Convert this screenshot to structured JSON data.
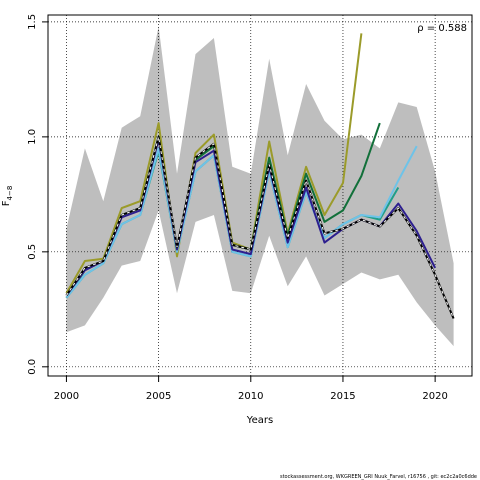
{
  "chart_data": {
    "type": "line",
    "xlabel": "Years",
    "ylabel_main": "F",
    "ylabel_sub": "4−8",
    "annotation": "ρ = 0.588",
    "footer": "stockassessment.org, WKGREEN_GRI Nuuk_Farvel, r16756 , git: ec2c2a0c6dde",
    "xlim": [
      1999,
      2022
    ],
    "ylim": [
      -0.04,
      1.53
    ],
    "x_ticks": [
      2000,
      2005,
      2010,
      2015,
      2020
    ],
    "y_ticks": [
      0.0,
      0.5,
      1.0,
      1.5
    ],
    "y_tick_labels": [
      "0.0",
      "0.5",
      "1.0",
      "1.5"
    ],
    "grid": true,
    "colors": {
      "band": "#bebebe",
      "base": "#000000",
      "navy": "#2d1f8f",
      "skyblue": "#6ec3e8",
      "teal": "#1f9e89",
      "green": "#12703a",
      "olive": "#9b9b2a"
    },
    "band": {
      "x": [
        2000,
        2001,
        2002,
        2003,
        2004,
        2005,
        2006,
        2007,
        2008,
        2009,
        2010,
        2011,
        2012,
        2013,
        2014,
        2015,
        2016,
        2017,
        2018,
        2019,
        2020,
        2021
      ],
      "upper": [
        0.6,
        0.95,
        0.72,
        1.04,
        1.09,
        1.48,
        0.84,
        1.36,
        1.43,
        0.87,
        0.84,
        1.34,
        0.92,
        1.23,
        1.07,
        0.99,
        1.01,
        0.95,
        1.15,
        1.13,
        0.85,
        0.45
      ],
      "lower": [
        0.15,
        0.18,
        0.3,
        0.44,
        0.46,
        0.68,
        0.32,
        0.63,
        0.66,
        0.33,
        0.32,
        0.57,
        0.35,
        0.48,
        0.31,
        0.36,
        0.41,
        0.38,
        0.4,
        0.28,
        0.18,
        0.09
      ]
    },
    "series": [
      {
        "x": [
          2000,
          2001,
          2002,
          2003,
          2004,
          2005,
          2006,
          2007,
          2008,
          2009,
          2010,
          2011,
          2012,
          2013,
          2014,
          2015,
          2016,
          2017,
          2018,
          2019,
          2020,
          2021
        ],
        "values": [
          0.31,
          0.43,
          0.46,
          0.66,
          0.69,
          1.0,
          0.52,
          0.91,
          0.97,
          0.53,
          0.51,
          0.88,
          0.56,
          0.81,
          0.58,
          0.6,
          0.64,
          0.61,
          0.69,
          0.57,
          0.4,
          0.21
        ],
        "color_key": "base",
        "dashed_overlay": true
      },
      {
        "x": [
          2000,
          2001,
          2002,
          2003,
          2004,
          2005,
          2006,
          2007,
          2008,
          2009,
          2010,
          2011,
          2012,
          2013,
          2014,
          2015,
          2016,
          2017,
          2018,
          2019,
          2020
        ],
        "values": [
          0.31,
          0.42,
          0.46,
          0.65,
          0.68,
          0.99,
          0.51,
          0.89,
          0.94,
          0.51,
          0.49,
          0.87,
          0.54,
          0.78,
          0.54,
          0.6,
          0.64,
          0.61,
          0.71,
          0.59,
          0.43
        ],
        "color_key": "navy"
      },
      {
        "x": [
          2000,
          2001,
          2002,
          2003,
          2004,
          2005,
          2006,
          2007,
          2008,
          2009,
          2010,
          2011,
          2012,
          2013,
          2014,
          2015,
          2016,
          2017,
          2018,
          2019
        ],
        "values": [
          0.3,
          0.4,
          0.45,
          0.62,
          0.66,
          0.95,
          0.5,
          0.85,
          0.92,
          0.5,
          0.48,
          0.85,
          0.52,
          0.76,
          0.56,
          0.62,
          0.66,
          0.65,
          0.81,
          0.96
        ],
        "color_key": "skyblue"
      },
      {
        "x": [
          2000,
          2001,
          2002,
          2003,
          2004,
          2005,
          2006,
          2007,
          2008,
          2009,
          2010,
          2011,
          2012,
          2013,
          2014,
          2015,
          2016,
          2017,
          2018
        ],
        "values": [
          0.3,
          0.4,
          0.45,
          0.62,
          0.66,
          0.94,
          0.5,
          0.85,
          0.92,
          0.5,
          0.48,
          0.85,
          0.52,
          0.76,
          0.56,
          0.62,
          0.66,
          0.64,
          0.78
        ],
        "color_key": "teal"
      },
      {
        "x": [
          2000,
          2001,
          2002,
          2003,
          2004,
          2005,
          2006,
          2007,
          2008,
          2009,
          2010,
          2011,
          2012,
          2013,
          2014,
          2015,
          2016,
          2017
        ],
        "values": [
          0.3,
          0.42,
          0.46,
          0.66,
          0.69,
          1.0,
          0.51,
          0.9,
          0.96,
          0.53,
          0.51,
          0.91,
          0.57,
          0.84,
          0.63,
          0.68,
          0.83,
          1.06
        ],
        "color_key": "green"
      },
      {
        "x": [
          2000,
          2001,
          2002,
          2003,
          2004,
          2005,
          2006,
          2007,
          2008,
          2009,
          2010,
          2011,
          2012,
          2013,
          2014,
          2015,
          2016
        ],
        "values": [
          0.32,
          0.46,
          0.47,
          0.69,
          0.72,
          1.06,
          0.48,
          0.93,
          1.01,
          0.54,
          0.51,
          0.98,
          0.58,
          0.87,
          0.66,
          0.8,
          1.45
        ],
        "color_key": "olive"
      }
    ]
  }
}
